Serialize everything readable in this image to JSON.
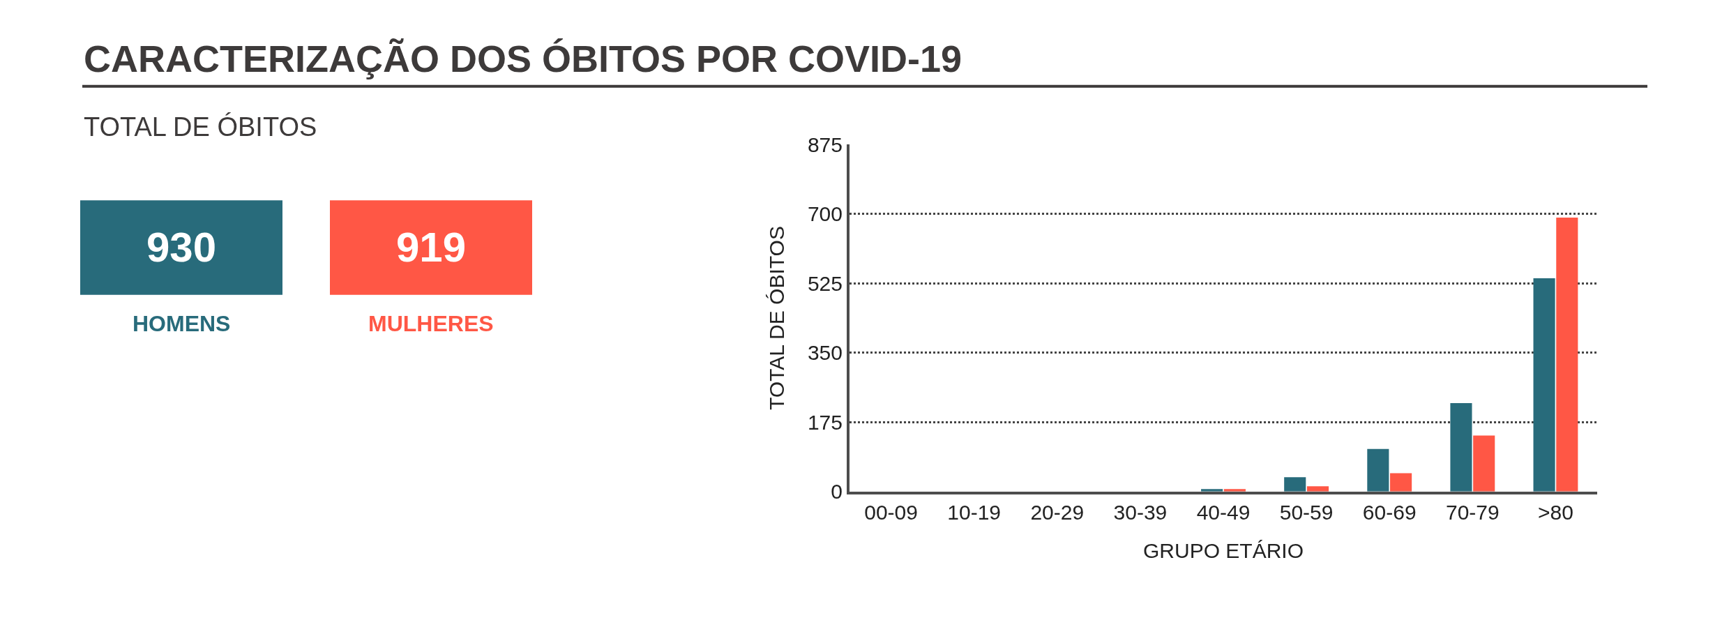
{
  "chart_data": [
    {
      "type": "other",
      "title": "CARACTERIZAÇÃO DOS ÓBITOS POR COVID-19",
      "subtitle": "TOTAL DE ÓBITOS",
      "categories": [
        "HOMENS",
        "MULHERES"
      ],
      "values": [
        930,
        919
      ],
      "data_labels": true,
      "colors": [
        "#286b7b",
        "#ff5745"
      ]
    },
    {
      "type": "bar",
      "xlabel": "GRUPO ETÁRIO",
      "ylabel": "TOTAL DE ÓBITOS",
      "categories": [
        "00-09",
        "10-19",
        "20-29",
        "30-39",
        "40-49",
        "50-59",
        "60-69",
        "70-79",
        ">80"
      ],
      "series": [
        {
          "color": "#286b7b",
          "values": [
            0,
            0,
            0,
            0,
            6,
            36,
            107,
            223,
            538
          ]
        },
        {
          "color": "#ff5745",
          "values": [
            0,
            0,
            0,
            0,
            6,
            13,
            46,
            141,
            691
          ]
        }
      ],
      "ylim": [
        0,
        875
      ],
      "yticks": [
        0,
        175,
        350,
        525,
        700,
        875
      ],
      "grid": "y"
    }
  ]
}
